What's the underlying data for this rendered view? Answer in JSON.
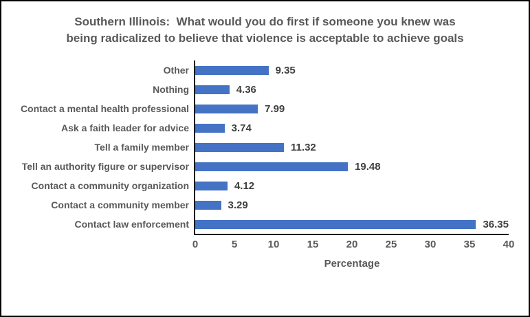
{
  "frame": {
    "background": "#ffffff",
    "border_color": "#000000"
  },
  "chart_data": {
    "type": "bar",
    "orientation": "horizontal",
    "title": "Southern Illinois:  What would you do first if someone you knew was being radicalized to believe that violence is acceptable to achieve goals",
    "categories": [
      "Other",
      "Nothing",
      "Contact a mental health professional",
      "Ask a faith leader for advice",
      "Tell a family member",
      "Tell an authority figure or supervisor",
      "Contact a community organization",
      "Contact a community member",
      "Contact law enforcement"
    ],
    "values": [
      9.35,
      4.36,
      7.99,
      3.74,
      11.32,
      19.48,
      4.12,
      3.29,
      36.35
    ],
    "xlabel": "Percentage",
    "ylabel": "",
    "xlim": [
      0,
      40
    ],
    "xticks": [
      0,
      5,
      10,
      15,
      20,
      25,
      30,
      35,
      40
    ],
    "bar_color": "#4472C4",
    "axis_line_color": "#000000",
    "text_color": "#595959",
    "data_label_color": "#3f3f3f",
    "data_labels": true,
    "grid": false,
    "legend": false
  }
}
